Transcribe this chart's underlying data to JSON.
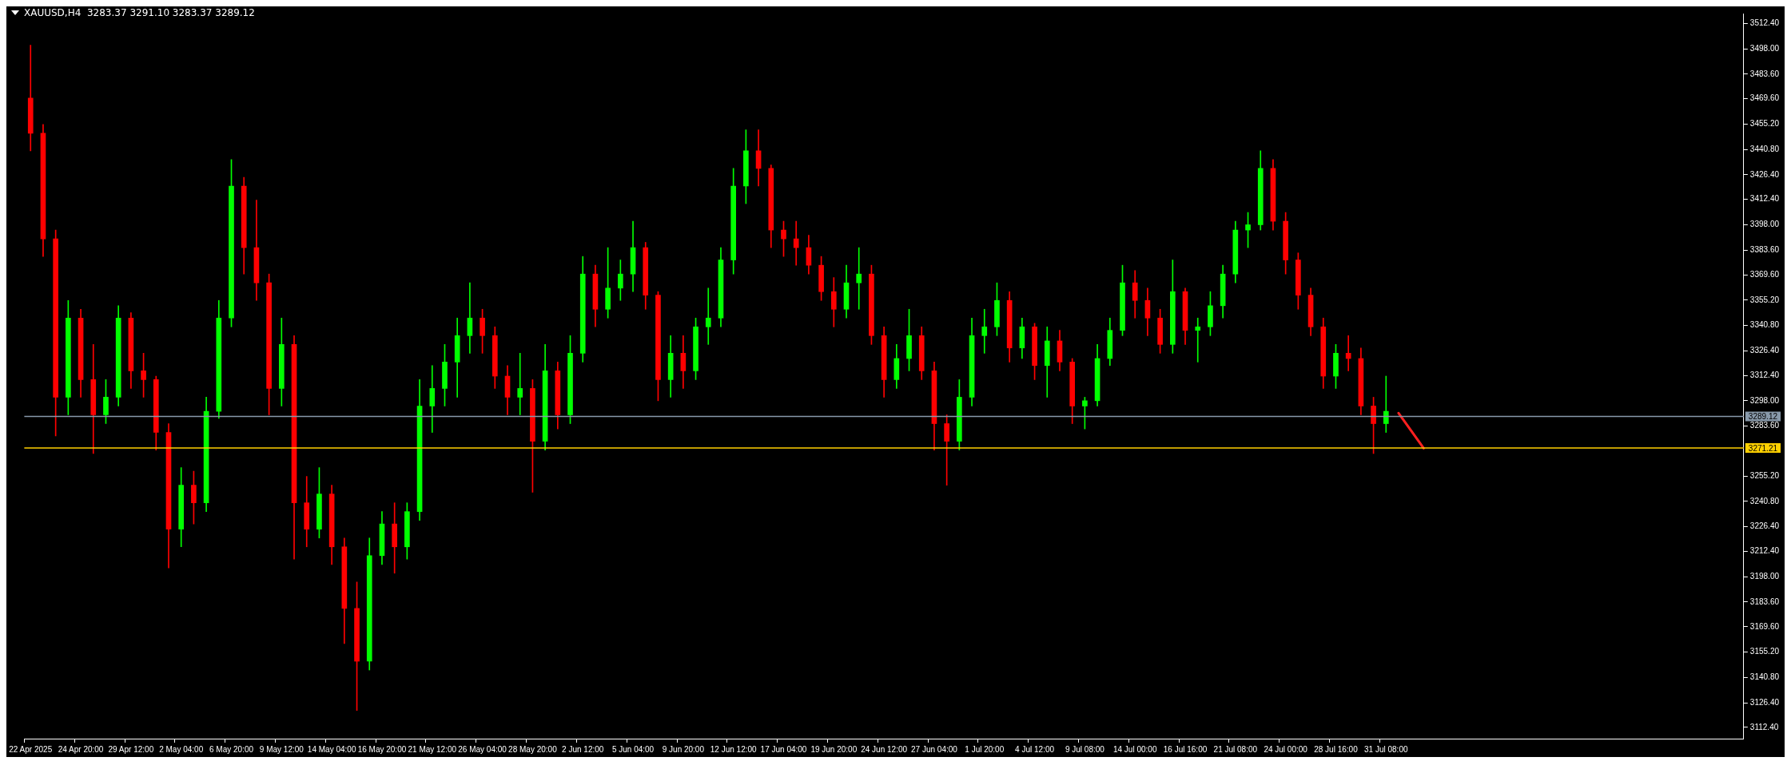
{
  "chart_data": {
    "type": "candlestick",
    "title": "XAUUSD,H4  3283.37 3291.10 3283.37 3289.12",
    "categories": [
      "22 Apr 2025",
      null,
      null,
      null,
      "24 Apr 20:00",
      null,
      null,
      null,
      "29 Apr 12:00",
      null,
      null,
      null,
      "2 May 04:00",
      null,
      null,
      null,
      "6 May 20:00",
      null,
      null,
      null,
      "9 May 12:00",
      null,
      null,
      null,
      "14 May 04:00",
      null,
      null,
      null,
      "16 May 20:00",
      null,
      null,
      null,
      "21 May 12:00",
      null,
      null,
      null,
      "26 May 04:00",
      null,
      null,
      null,
      "28 May 20:00",
      null,
      null,
      null,
      "2 Jun 12:00",
      null,
      null,
      null,
      "5 Jun 04:00",
      null,
      null,
      null,
      "9 Jun 20:00",
      null,
      null,
      null,
      "12 Jun 12:00",
      null,
      null,
      null,
      "17 Jun 04:00",
      null,
      null,
      null,
      "19 Jun 20:00",
      null,
      null,
      null,
      "24 Jun 12:00",
      null,
      null,
      null,
      "27 Jun 04:00",
      null,
      null,
      null,
      "1 Jul 20:00",
      null,
      null,
      null,
      "4 Jul 12:00",
      null,
      null,
      null,
      "9 Jul 08:00",
      null,
      null,
      null,
      "14 Jul 00:00",
      null,
      null,
      null,
      "16 Jul 16:00",
      null,
      null,
      null,
      "21 Jul 08:00",
      null,
      null,
      null,
      "24 Jul 00:00",
      null,
      null,
      null,
      "28 Jul 16:00",
      null,
      null,
      null,
      "31 Jul 08:00",
      null,
      null,
      null,
      null,
      null,
      null,
      null,
      null,
      null,
      null,
      null,
      null,
      null,
      null,
      null,
      null,
      null,
      null,
      null,
      null,
      null,
      null,
      null,
      null,
      null,
      null,
      null,
      null
    ],
    "ohlc": [
      [
        3470,
        3500,
        3440,
        3450
      ],
      [
        3450,
        3455,
        3380,
        3390
      ],
      [
        3390,
        3395,
        3278,
        3300
      ],
      [
        3300,
        3355,
        3290,
        3345
      ],
      [
        3345,
        3350,
        3300,
        3310
      ],
      [
        3310,
        3330,
        3268,
        3290
      ],
      [
        3290,
        3310,
        3285,
        3300
      ],
      [
        3300,
        3352,
        3295,
        3345
      ],
      [
        3345,
        3348,
        3305,
        3315
      ],
      [
        3315,
        3325,
        3300,
        3310
      ],
      [
        3310,
        3312,
        3270,
        3280
      ],
      [
        3280,
        3285,
        3203,
        3225
      ],
      [
        3225,
        3260,
        3215,
        3250
      ],
      [
        3250,
        3258,
        3228,
        3240
      ],
      [
        3240,
        3300,
        3235,
        3292
      ],
      [
        3292,
        3355,
        3288,
        3345
      ],
      [
        3345,
        3435,
        3340,
        3420
      ],
      [
        3420,
        3425,
        3370,
        3385
      ],
      [
        3385,
        3412,
        3355,
        3365
      ],
      [
        3365,
        3370,
        3290,
        3305
      ],
      [
        3305,
        3345,
        3295,
        3330
      ],
      [
        3330,
        3335,
        3208,
        3240
      ],
      [
        3240,
        3255,
        3215,
        3225
      ],
      [
        3225,
        3260,
        3220,
        3245
      ],
      [
        3245,
        3250,
        3205,
        3215
      ],
      [
        3215,
        3220,
        3160,
        3180
      ],
      [
        3180,
        3195,
        3122,
        3150
      ],
      [
        3150,
        3220,
        3145,
        3210
      ],
      [
        3210,
        3235,
        3205,
        3228
      ],
      [
        3228,
        3240,
        3200,
        3215
      ],
      [
        3215,
        3240,
        3208,
        3235
      ],
      [
        3235,
        3310,
        3230,
        3295
      ],
      [
        3295,
        3318,
        3280,
        3305
      ],
      [
        3305,
        3330,
        3295,
        3320
      ],
      [
        3320,
        3345,
        3300,
        3335
      ],
      [
        3335,
        3365,
        3325,
        3345
      ],
      [
        3345,
        3350,
        3325,
        3335
      ],
      [
        3335,
        3340,
        3305,
        3312
      ],
      [
        3312,
        3318,
        3290,
        3300
      ],
      [
        3300,
        3325,
        3290,
        3305
      ],
      [
        3305,
        3310,
        3246,
        3275
      ],
      [
        3275,
        3330,
        3270,
        3315
      ],
      [
        3315,
        3320,
        3282,
        3290
      ],
      [
        3290,
        3335,
        3285,
        3325
      ],
      [
        3325,
        3380,
        3320,
        3370
      ],
      [
        3370,
        3375,
        3340,
        3350
      ],
      [
        3350,
        3385,
        3345,
        3362
      ],
      [
        3362,
        3378,
        3355,
        3370
      ],
      [
        3370,
        3400,
        3360,
        3385
      ],
      [
        3385,
        3388,
        3350,
        3358
      ],
      [
        3358,
        3360,
        3298,
        3310
      ],
      [
        3310,
        3335,
        3300,
        3325
      ],
      [
        3325,
        3335,
        3305,
        3315
      ],
      [
        3315,
        3345,
        3310,
        3340
      ],
      [
        3340,
        3362,
        3330,
        3345
      ],
      [
        3345,
        3385,
        3340,
        3378
      ],
      [
        3378,
        3430,
        3370,
        3420
      ],
      [
        3420,
        3452,
        3410,
        3440
      ],
      [
        3440,
        3452,
        3420,
        3430
      ],
      [
        3430,
        3432,
        3385,
        3395
      ],
      [
        3395,
        3400,
        3380,
        3390
      ],
      [
        3390,
        3400,
        3375,
        3385
      ],
      [
        3385,
        3392,
        3370,
        3375
      ],
      [
        3375,
        3380,
        3355,
        3360
      ],
      [
        3360,
        3368,
        3340,
        3350
      ],
      [
        3350,
        3375,
        3345,
        3365
      ],
      [
        3365,
        3385,
        3350,
        3370
      ],
      [
        3370,
        3375,
        3330,
        3335
      ],
      [
        3335,
        3340,
        3300,
        3310
      ],
      [
        3310,
        3330,
        3305,
        3322
      ],
      [
        3322,
        3350,
        3315,
        3335
      ],
      [
        3335,
        3340,
        3310,
        3315
      ],
      [
        3315,
        3320,
        3270,
        3285
      ],
      [
        3285,
        3290,
        3250,
        3275
      ],
      [
        3275,
        3310,
        3270,
        3300
      ],
      [
        3300,
        3345,
        3295,
        3335
      ],
      [
        3335,
        3350,
        3325,
        3340
      ],
      [
        3340,
        3365,
        3335,
        3355
      ],
      [
        3355,
        3360,
        3320,
        3328
      ],
      [
        3328,
        3345,
        3322,
        3340
      ],
      [
        3340,
        3342,
        3310,
        3318
      ],
      [
        3318,
        3340,
        3300,
        3332
      ],
      [
        3332,
        3338,
        3315,
        3320
      ],
      [
        3320,
        3322,
        3285,
        3295
      ],
      [
        3295,
        3300,
        3282,
        3298
      ],
      [
        3298,
        3330,
        3295,
        3322
      ],
      [
        3322,
        3345,
        3318,
        3338
      ],
      [
        3338,
        3375,
        3335,
        3365
      ],
      [
        3365,
        3372,
        3345,
        3355
      ],
      [
        3355,
        3362,
        3335,
        3345
      ],
      [
        3345,
        3350,
        3325,
        3330
      ],
      [
        3330,
        3378,
        3325,
        3360
      ],
      [
        3360,
        3362,
        3330,
        3338
      ],
      [
        3338,
        3345,
        3320,
        3340
      ],
      [
        3340,
        3360,
        3335,
        3352
      ],
      [
        3352,
        3375,
        3345,
        3370
      ],
      [
        3370,
        3400,
        3365,
        3395
      ],
      [
        3395,
        3405,
        3385,
        3398
      ],
      [
        3398,
        3440,
        3395,
        3430
      ],
      [
        3430,
        3435,
        3395,
        3400
      ],
      [
        3400,
        3405,
        3370,
        3378
      ],
      [
        3378,
        3382,
        3350,
        3358
      ],
      [
        3358,
        3362,
        3335,
        3340
      ],
      [
        3340,
        3345,
        3305,
        3312
      ],
      [
        3312,
        3330,
        3305,
        3325
      ],
      [
        3325,
        3335,
        3315,
        3322
      ],
      [
        3322,
        3328,
        3290,
        3295
      ],
      [
        3295,
        3300,
        3268,
        3285
      ],
      [
        3285,
        3312,
        3280,
        3292
      ],
      null,
      null,
      null,
      null,
      null,
      null,
      null,
      null,
      null,
      null,
      null,
      null,
      null,
      null,
      null,
      null,
      null,
      null,
      null,
      null,
      null,
      null,
      null,
      null,
      null,
      null,
      null,
      null
    ],
    "colors": [
      "#ff0000",
      "#ff0000",
      "#ff0000",
      "#00ff00",
      "#ff0000",
      "#ff0000",
      "#00ff00",
      "#00ff00",
      "#ff0000",
      "#ff0000",
      "#ff0000",
      "#ff0000",
      "#00ff00",
      "#ff0000",
      "#00ff00",
      "#00ff00",
      "#00ff00",
      "#ff0000",
      "#ff0000",
      "#ff0000",
      "#00ff00",
      "#ff0000",
      "#ff0000",
      "#00ff00",
      "#ff0000",
      "#ff0000",
      "#ff0000",
      "#00ff00",
      "#00ff00",
      "#ff0000",
      "#00ff00",
      "#00ff00",
      "#00ff00",
      "#00ff00",
      "#00ff00",
      "#00ff00",
      "#ff0000",
      "#ff0000",
      "#ff0000",
      "#00ff00",
      "#ff0000",
      "#00ff00",
      "#ff0000",
      "#00ff00",
      "#00ff00",
      "#ff0000",
      "#00ff00",
      "#00ff00",
      "#00ff00",
      "#ff0000",
      "#ff0000",
      "#00ff00",
      "#ff0000",
      "#00ff00",
      "#00ff00",
      "#00ff00",
      "#00ff00",
      "#00ff00",
      "#ff0000",
      "#ff0000",
      "#ff0000",
      "#ff0000",
      "#ff0000",
      "#ff0000",
      "#ff0000",
      "#00ff00",
      "#00ff00",
      "#ff0000",
      "#ff0000",
      "#00ff00",
      "#00ff00",
      "#ff0000",
      "#ff0000",
      "#ff0000",
      "#00ff00",
      "#00ff00",
      "#00ff00",
      "#00ff00",
      "#ff0000",
      "#00ff00",
      "#ff0000",
      "#00ff00",
      "#ff0000",
      "#ff0000",
      "#00ff00",
      "#00ff00",
      "#00ff00",
      "#00ff00",
      "#ff0000",
      "#ff0000",
      "#ff0000",
      "#00ff00",
      "#ff0000",
      "#00ff00",
      "#00ff00",
      "#00ff00",
      "#00ff00",
      "#00ff00",
      "#00ff00",
      "#ff0000",
      "#ff0000",
      "#ff0000",
      "#ff0000",
      "#ff0000",
      "#00ff00",
      "#ff0000",
      "#ff0000",
      "#ff0000",
      "#00ff00",
      null,
      null,
      null,
      null,
      null,
      null,
      null,
      null,
      null,
      null,
      null,
      null,
      null,
      null,
      null,
      null,
      null,
      null,
      null,
      null,
      null,
      null,
      null,
      null,
      null,
      null,
      null,
      null
    ],
    "series": [
      {
        "type": "line",
        "color": "#ff2020",
        "values": [
          null,
          null,
          null,
          null,
          null,
          null,
          null,
          null,
          null,
          null,
          null,
          null,
          null,
          null,
          null,
          null,
          null,
          null,
          null,
          null,
          null,
          null,
          null,
          null,
          null,
          null,
          null,
          null,
          null,
          null,
          null,
          null,
          null,
          null,
          null,
          null,
          null,
          null,
          null,
          null,
          null,
          null,
          null,
          null,
          null,
          null,
          null,
          null,
          null,
          null,
          null,
          null,
          null,
          null,
          null,
          null,
          null,
          null,
          null,
          null,
          null,
          null,
          null,
          null,
          null,
          null,
          null,
          null,
          null,
          null,
          null,
          null,
          null,
          null,
          null,
          null,
          null,
          null,
          null,
          null,
          null,
          null,
          null,
          null,
          null,
          null,
          null,
          null,
          null,
          null,
          null,
          null,
          null,
          null,
          null,
          null,
          null,
          null,
          null,
          null,
          null,
          null,
          null,
          null,
          null,
          null,
          null,
          null,
          null,
          3291,
          null,
          3271,
          null,
          null,
          null,
          null,
          null,
          null,
          null,
          null,
          null,
          null,
          null,
          null,
          null,
          null,
          null,
          null,
          null,
          null,
          null,
          null,
          null,
          null,
          null,
          null,
          null
        ]
      }
    ],
    "ylim": [
      3106,
      3518
    ],
    "yticks": [
      {
        "value": 3112.4,
        "label": "3112.40"
      },
      {
        "value": 3126.4,
        "label": "3126.40"
      },
      {
        "value": 3140.8,
        "label": "3140.80"
      },
      {
        "value": 3155.2,
        "label": "3155.20"
      },
      {
        "value": 3169.6,
        "label": "3169.60"
      },
      {
        "value": 3183.6,
        "label": "3183.60"
      },
      {
        "value": 3198,
        "label": "3198.00"
      },
      {
        "value": 3212.4,
        "label": "3212.40"
      },
      {
        "value": 3226.4,
        "label": "3226.40"
      },
      {
        "value": 3240.8,
        "label": "3240.80"
      },
      {
        "value": 3255.2,
        "label": "3255.20"
      },
      {
        "value": 3283.6,
        "label": "3283.60"
      },
      {
        "value": 3298,
        "label": "3298.00"
      },
      {
        "value": 3312.4,
        "label": "3312.40"
      },
      {
        "value": 3326.4,
        "label": "3326.40"
      },
      {
        "value": 3340.8,
        "label": "3340.80"
      },
      {
        "value": 3355.2,
        "label": "3355.20"
      },
      {
        "value": 3369.6,
        "label": "3369.60"
      },
      {
        "value": 3383.6,
        "label": "3383.60"
      },
      {
        "value": 3398,
        "label": "3398.00"
      },
      {
        "value": 3412.4,
        "label": "3412.40"
      },
      {
        "value": 3426.4,
        "label": "3426.40"
      },
      {
        "value": 3440.8,
        "label": "3440.80"
      },
      {
        "value": 3455.2,
        "label": "3455.20"
      },
      {
        "value": 3469.6,
        "label": "3469.60"
      },
      {
        "value": 3483.6,
        "label": "3483.60"
      },
      {
        "value": 3498,
        "label": "3498.00"
      },
      {
        "value": 3512.4,
        "label": "3512.40"
      }
    ],
    "ref_lines": [
      {
        "axis": "y",
        "value": 3289.12,
        "label": "3289.12",
        "color": "#8899aa"
      },
      {
        "axis": "y",
        "value": 3271.21,
        "label": "3271.21",
        "color": "#ffd000"
      }
    ],
    "grid": false,
    "legend": false
  }
}
